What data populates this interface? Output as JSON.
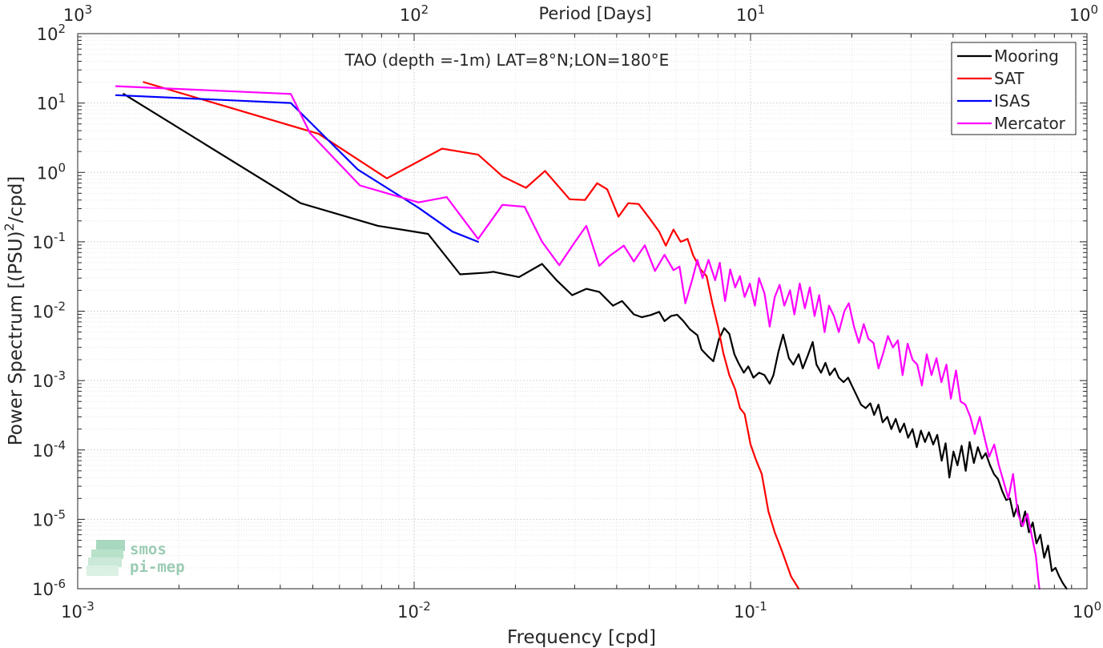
{
  "chart_data": {
    "type": "line",
    "title": "TAO (depth =-1m) LAT=8°N;LON=180°E",
    "xlabel": "Frequency [cpd]",
    "ylabel_base": "Power Spectrum [(PSU)",
    "ylabel_sup": "2",
    "ylabel_tail": "/cpd]",
    "top_xlabel": "Period [Days]",
    "x_scale": "log",
    "y_scale": "log",
    "xlim": [
      0.001,
      1
    ],
    "ylim": [
      1e-06,
      100
    ],
    "grid": true,
    "minor_grid": true,
    "legend_position": "top-right",
    "x_ticks": [
      {
        "value": 0.001,
        "base": "10",
        "exp": "-3"
      },
      {
        "value": 0.01,
        "base": "10",
        "exp": "-2"
      },
      {
        "value": 0.1,
        "base": "10",
        "exp": "-1"
      },
      {
        "value": 1,
        "base": "10",
        "exp": "0"
      }
    ],
    "y_ticks": [
      {
        "value": 1e-06,
        "base": "10",
        "exp": "-6"
      },
      {
        "value": 1e-05,
        "base": "10",
        "exp": "-5"
      },
      {
        "value": 0.0001,
        "base": "10",
        "exp": "-4"
      },
      {
        "value": 0.001,
        "base": "10",
        "exp": "-3"
      },
      {
        "value": 0.01,
        "base": "10",
        "exp": "-2"
      },
      {
        "value": 0.1,
        "base": "10",
        "exp": "-1"
      },
      {
        "value": 1,
        "base": "10",
        "exp": "0"
      },
      {
        "value": 10,
        "base": "10",
        "exp": "1"
      },
      {
        "value": 100,
        "base": "10",
        "exp": "2"
      }
    ],
    "top_ticks": [
      {
        "freq": 0.001,
        "base": "10",
        "exp": "3"
      },
      {
        "freq": 0.01,
        "base": "10",
        "exp": "2"
      },
      {
        "freq": 0.1,
        "base": "10",
        "exp": "1"
      },
      {
        "freq": 1,
        "base": "10",
        "exp": "0"
      }
    ],
    "series": [
      {
        "name": "Mooring",
        "color": "#000000",
        "points": [
          [
            0.00137,
            13.5
          ],
          [
            0.0046,
            0.36
          ],
          [
            0.0078,
            0.17
          ],
          [
            0.011,
            0.13
          ],
          [
            0.0137,
            0.034
          ],
          [
            0.0165,
            0.036
          ],
          [
            0.0172,
            0.037
          ],
          [
            0.0205,
            0.031
          ],
          [
            0.024,
            0.048
          ],
          [
            0.0265,
            0.028
          ],
          [
            0.0295,
            0.017
          ],
          [
            0.0325,
            0.021
          ],
          [
            0.0355,
            0.019
          ],
          [
            0.039,
            0.012
          ],
          [
            0.0415,
            0.014
          ],
          [
            0.045,
            0.009
          ],
          [
            0.0475,
            0.0082
          ],
          [
            0.0505,
            0.0088
          ],
          [
            0.0535,
            0.0098
          ],
          [
            0.0555,
            0.0072
          ],
          [
            0.058,
            0.0085
          ],
          [
            0.0605,
            0.0089
          ],
          [
            0.063,
            0.0073
          ],
          [
            0.066,
            0.0055
          ],
          [
            0.0695,
            0.0045
          ],
          [
            0.0715,
            0.0028
          ],
          [
            0.075,
            0.0022
          ],
          [
            0.0775,
            0.0019
          ],
          [
            0.0805,
            0.0039
          ],
          [
            0.0835,
            0.0057
          ],
          [
            0.0865,
            0.0047
          ],
          [
            0.0895,
            0.0024
          ],
          [
            0.092,
            0.0018
          ],
          [
            0.0955,
            0.0013
          ],
          [
            0.0985,
            0.0016
          ],
          [
            0.102,
            0.0011
          ],
          [
            0.106,
            0.0013
          ],
          [
            0.11,
            0.0012
          ],
          [
            0.114,
            0.0009
          ],
          [
            0.117,
            0.0012
          ],
          [
            0.121,
            0.0026
          ],
          [
            0.125,
            0.0046
          ],
          [
            0.13,
            0.0021
          ],
          [
            0.134,
            0.0017
          ],
          [
            0.139,
            0.0024
          ],
          [
            0.143,
            0.0015
          ],
          [
            0.148,
            0.0023
          ],
          [
            0.153,
            0.0036
          ],
          [
            0.157,
            0.0017
          ],
          [
            0.162,
            0.0013
          ],
          [
            0.167,
            0.0018
          ],
          [
            0.172,
            0.0012
          ],
          [
            0.178,
            0.0015
          ],
          [
            0.183,
            0.0011
          ],
          [
            0.189,
            0.00095
          ],
          [
            0.195,
            0.0011
          ],
          [
            0.2,
            0.00085
          ],
          [
            0.207,
            0.0006
          ],
          [
            0.213,
            0.00045
          ],
          [
            0.22,
            0.0004
          ],
          [
            0.227,
            0.00047
          ],
          [
            0.233,
            0.00032
          ],
          [
            0.24,
            0.00045
          ],
          [
            0.247,
            0.00025
          ],
          [
            0.255,
            0.0003
          ],
          [
            0.262,
            0.0002
          ],
          [
            0.27,
            0.00028
          ],
          [
            0.278,
            0.00018
          ],
          [
            0.286,
            0.00024
          ],
          [
            0.294,
            0.00015
          ],
          [
            0.303,
            0.0002
          ],
          [
            0.312,
            0.00011
          ],
          [
            0.321,
            0.00019
          ],
          [
            0.33,
            0.00013
          ],
          [
            0.339,
            0.00018
          ],
          [
            0.349,
            0.00012
          ],
          [
            0.359,
            0.000165
          ],
          [
            0.37,
            7e-05
          ],
          [
            0.38,
            0.000125
          ],
          [
            0.39,
            4e-05
          ],
          [
            0.401,
            9.5e-05
          ],
          [
            0.412,
            6e-05
          ],
          [
            0.424,
            0.000115
          ],
          [
            0.436,
            5e-05
          ],
          [
            0.448,
            0.00013
          ],
          [
            0.461,
            6.5e-05
          ],
          [
            0.474,
            0.00011
          ],
          [
            0.487,
            7.5e-05
          ],
          [
            0.5,
            9e-05
          ],
          [
            0.515,
            6e-05
          ],
          [
            0.529,
            4.5e-05
          ],
          [
            0.544,
            3.8e-05
          ],
          [
            0.559,
            2.6e-05
          ],
          [
            0.575,
            1.9e-05
          ],
          [
            0.59,
            2e-05
          ],
          [
            0.606,
            1.1e-05
          ],
          [
            0.622,
            1.6e-05
          ],
          [
            0.638,
            8e-06
          ],
          [
            0.655,
            1.3e-05
          ],
          [
            0.672,
            6.5e-06
          ],
          [
            0.69,
            9e-06
          ],
          [
            0.708,
            4.5e-06
          ],
          [
            0.727,
            6e-06
          ],
          [
            0.746,
            2.8e-06
          ],
          [
            0.766,
            4.2e-06
          ],
          [
            0.786,
            1.8e-06
          ],
          [
            0.806,
            2e-06
          ],
          [
            0.827,
            1.5e-06
          ],
          [
            0.848,
            1.2e-06
          ],
          [
            0.87,
            1e-06
          ]
        ]
      },
      {
        "name": "SAT",
        "color": "#ff0000",
        "points": [
          [
            0.00157,
            20
          ],
          [
            0.0052,
            3.6
          ],
          [
            0.0083,
            0.82
          ],
          [
            0.0121,
            2.2
          ],
          [
            0.0155,
            1.8
          ],
          [
            0.0183,
            0.88
          ],
          [
            0.0215,
            0.6
          ],
          [
            0.0245,
            1.05
          ],
          [
            0.029,
            0.41
          ],
          [
            0.0322,
            0.4
          ],
          [
            0.035,
            0.7
          ],
          [
            0.0375,
            0.57
          ],
          [
            0.0405,
            0.23
          ],
          [
            0.0433,
            0.36
          ],
          [
            0.0465,
            0.35
          ],
          [
            0.05,
            0.22
          ],
          [
            0.0535,
            0.14
          ],
          [
            0.056,
            0.088
          ],
          [
            0.059,
            0.15
          ],
          [
            0.062,
            0.1
          ],
          [
            0.065,
            0.11
          ],
          [
            0.0675,
            0.064
          ],
          [
            0.071,
            0.04
          ],
          [
            0.074,
            0.032
          ],
          [
            0.077,
            0.013
          ],
          [
            0.08,
            0.006
          ],
          [
            0.083,
            0.0025
          ],
          [
            0.0865,
            0.0012
          ],
          [
            0.09,
            0.00075
          ],
          [
            0.093,
            0.0004
          ],
          [
            0.096,
            0.00033
          ],
          [
            0.1,
            0.00012
          ],
          [
            0.104,
            7e-05
          ],
          [
            0.108,
            4.5e-05
          ],
          [
            0.113,
            1.3e-05
          ],
          [
            0.118,
            6.5e-06
          ],
          [
            0.124,
            3.5e-06
          ],
          [
            0.132,
            1.5e-06
          ],
          [
            0.139,
            1e-06
          ]
        ]
      },
      {
        "name": "ISAS",
        "color": "#0000ff",
        "points": [
          [
            0.0013,
            13
          ],
          [
            0.0043,
            10
          ],
          [
            0.0068,
            1.1
          ],
          [
            0.0103,
            0.31
          ],
          [
            0.013,
            0.14
          ],
          [
            0.0155,
            0.1
          ]
        ]
      },
      {
        "name": "Mercator",
        "color": "#ff00ff",
        "points": [
          [
            0.0013,
            17.5
          ],
          [
            0.0043,
            13.5
          ],
          [
            0.0049,
            3.7
          ],
          [
            0.0069,
            0.65
          ],
          [
            0.0103,
            0.37
          ],
          [
            0.0125,
            0.44
          ],
          [
            0.0155,
            0.11
          ],
          [
            0.0183,
            0.34
          ],
          [
            0.0213,
            0.32
          ],
          [
            0.024,
            0.1
          ],
          [
            0.027,
            0.046
          ],
          [
            0.03,
            0.098
          ],
          [
            0.0325,
            0.17
          ],
          [
            0.0355,
            0.045
          ],
          [
            0.038,
            0.062
          ],
          [
            0.042,
            0.088
          ],
          [
            0.045,
            0.052
          ],
          [
            0.0485,
            0.089
          ],
          [
            0.052,
            0.038
          ],
          [
            0.0555,
            0.065
          ],
          [
            0.059,
            0.039
          ],
          [
            0.0615,
            0.044
          ],
          [
            0.064,
            0.013
          ],
          [
            0.067,
            0.028
          ],
          [
            0.0695,
            0.055
          ],
          [
            0.072,
            0.03
          ],
          [
            0.075,
            0.055
          ],
          [
            0.0785,
            0.028
          ],
          [
            0.081,
            0.05
          ],
          [
            0.084,
            0.014
          ],
          [
            0.087,
            0.04
          ],
          [
            0.09,
            0.022
          ],
          [
            0.093,
            0.032
          ],
          [
            0.096,
            0.016
          ],
          [
            0.0995,
            0.025
          ],
          [
            0.103,
            0.012
          ],
          [
            0.106,
            0.03
          ],
          [
            0.11,
            0.018
          ],
          [
            0.114,
            0.006
          ],
          [
            0.118,
            0.016
          ],
          [
            0.122,
            0.024
          ],
          [
            0.126,
            0.012
          ],
          [
            0.131,
            0.02
          ],
          [
            0.135,
            0.009
          ],
          [
            0.14,
            0.025
          ],
          [
            0.145,
            0.011
          ],
          [
            0.15,
            0.022
          ],
          [
            0.155,
            0.0085
          ],
          [
            0.16,
            0.017
          ],
          [
            0.166,
            0.005
          ],
          [
            0.171,
            0.012
          ],
          [
            0.177,
            0.0085
          ],
          [
            0.183,
            0.005
          ],
          [
            0.19,
            0.01
          ],
          [
            0.196,
            0.013
          ],
          [
            0.203,
            0.006
          ],
          [
            0.21,
            0.0035
          ],
          [
            0.217,
            0.0065
          ],
          [
            0.224,
            0.004
          ],
          [
            0.232,
            0.0035
          ],
          [
            0.24,
            0.0015
          ],
          [
            0.248,
            0.0025
          ],
          [
            0.256,
            0.0044
          ],
          [
            0.265,
            0.003
          ],
          [
            0.274,
            0.0038
          ],
          [
            0.283,
            0.0012
          ],
          [
            0.293,
            0.0034
          ],
          [
            0.303,
            0.002
          ],
          [
            0.313,
            0.0017
          ],
          [
            0.323,
            0.00085
          ],
          [
            0.334,
            0.0024
          ],
          [
            0.345,
            0.0012
          ],
          [
            0.357,
            0.0021
          ],
          [
            0.369,
            0.00095
          ],
          [
            0.382,
            0.0017
          ],
          [
            0.394,
            0.00055
          ],
          [
            0.408,
            0.0014
          ],
          [
            0.421,
            0.0005
          ],
          [
            0.435,
            0.00045
          ],
          [
            0.45,
            0.0003
          ],
          [
            0.464,
            0.00017
          ],
          [
            0.48,
            0.0003
          ],
          [
            0.496,
            0.00015
          ],
          [
            0.512,
            8e-05
          ],
          [
            0.53,
            0.00012
          ],
          [
            0.547,
            6e-05
          ],
          [
            0.565,
            3.5e-05
          ],
          [
            0.584,
            2e-05
          ],
          [
            0.603,
            4.5e-05
          ],
          [
            0.623,
            1.2e-05
          ],
          [
            0.644,
            8e-06
          ],
          [
            0.665,
            1.2e-05
          ],
          [
            0.687,
            5.5e-06
          ],
          [
            0.705,
            3e-06
          ],
          [
            0.715,
            1.5e-06
          ],
          [
            0.722,
            1e-06
          ]
        ]
      }
    ]
  },
  "watermark": {
    "line1": "smos",
    "line2": "pi-mep"
  }
}
